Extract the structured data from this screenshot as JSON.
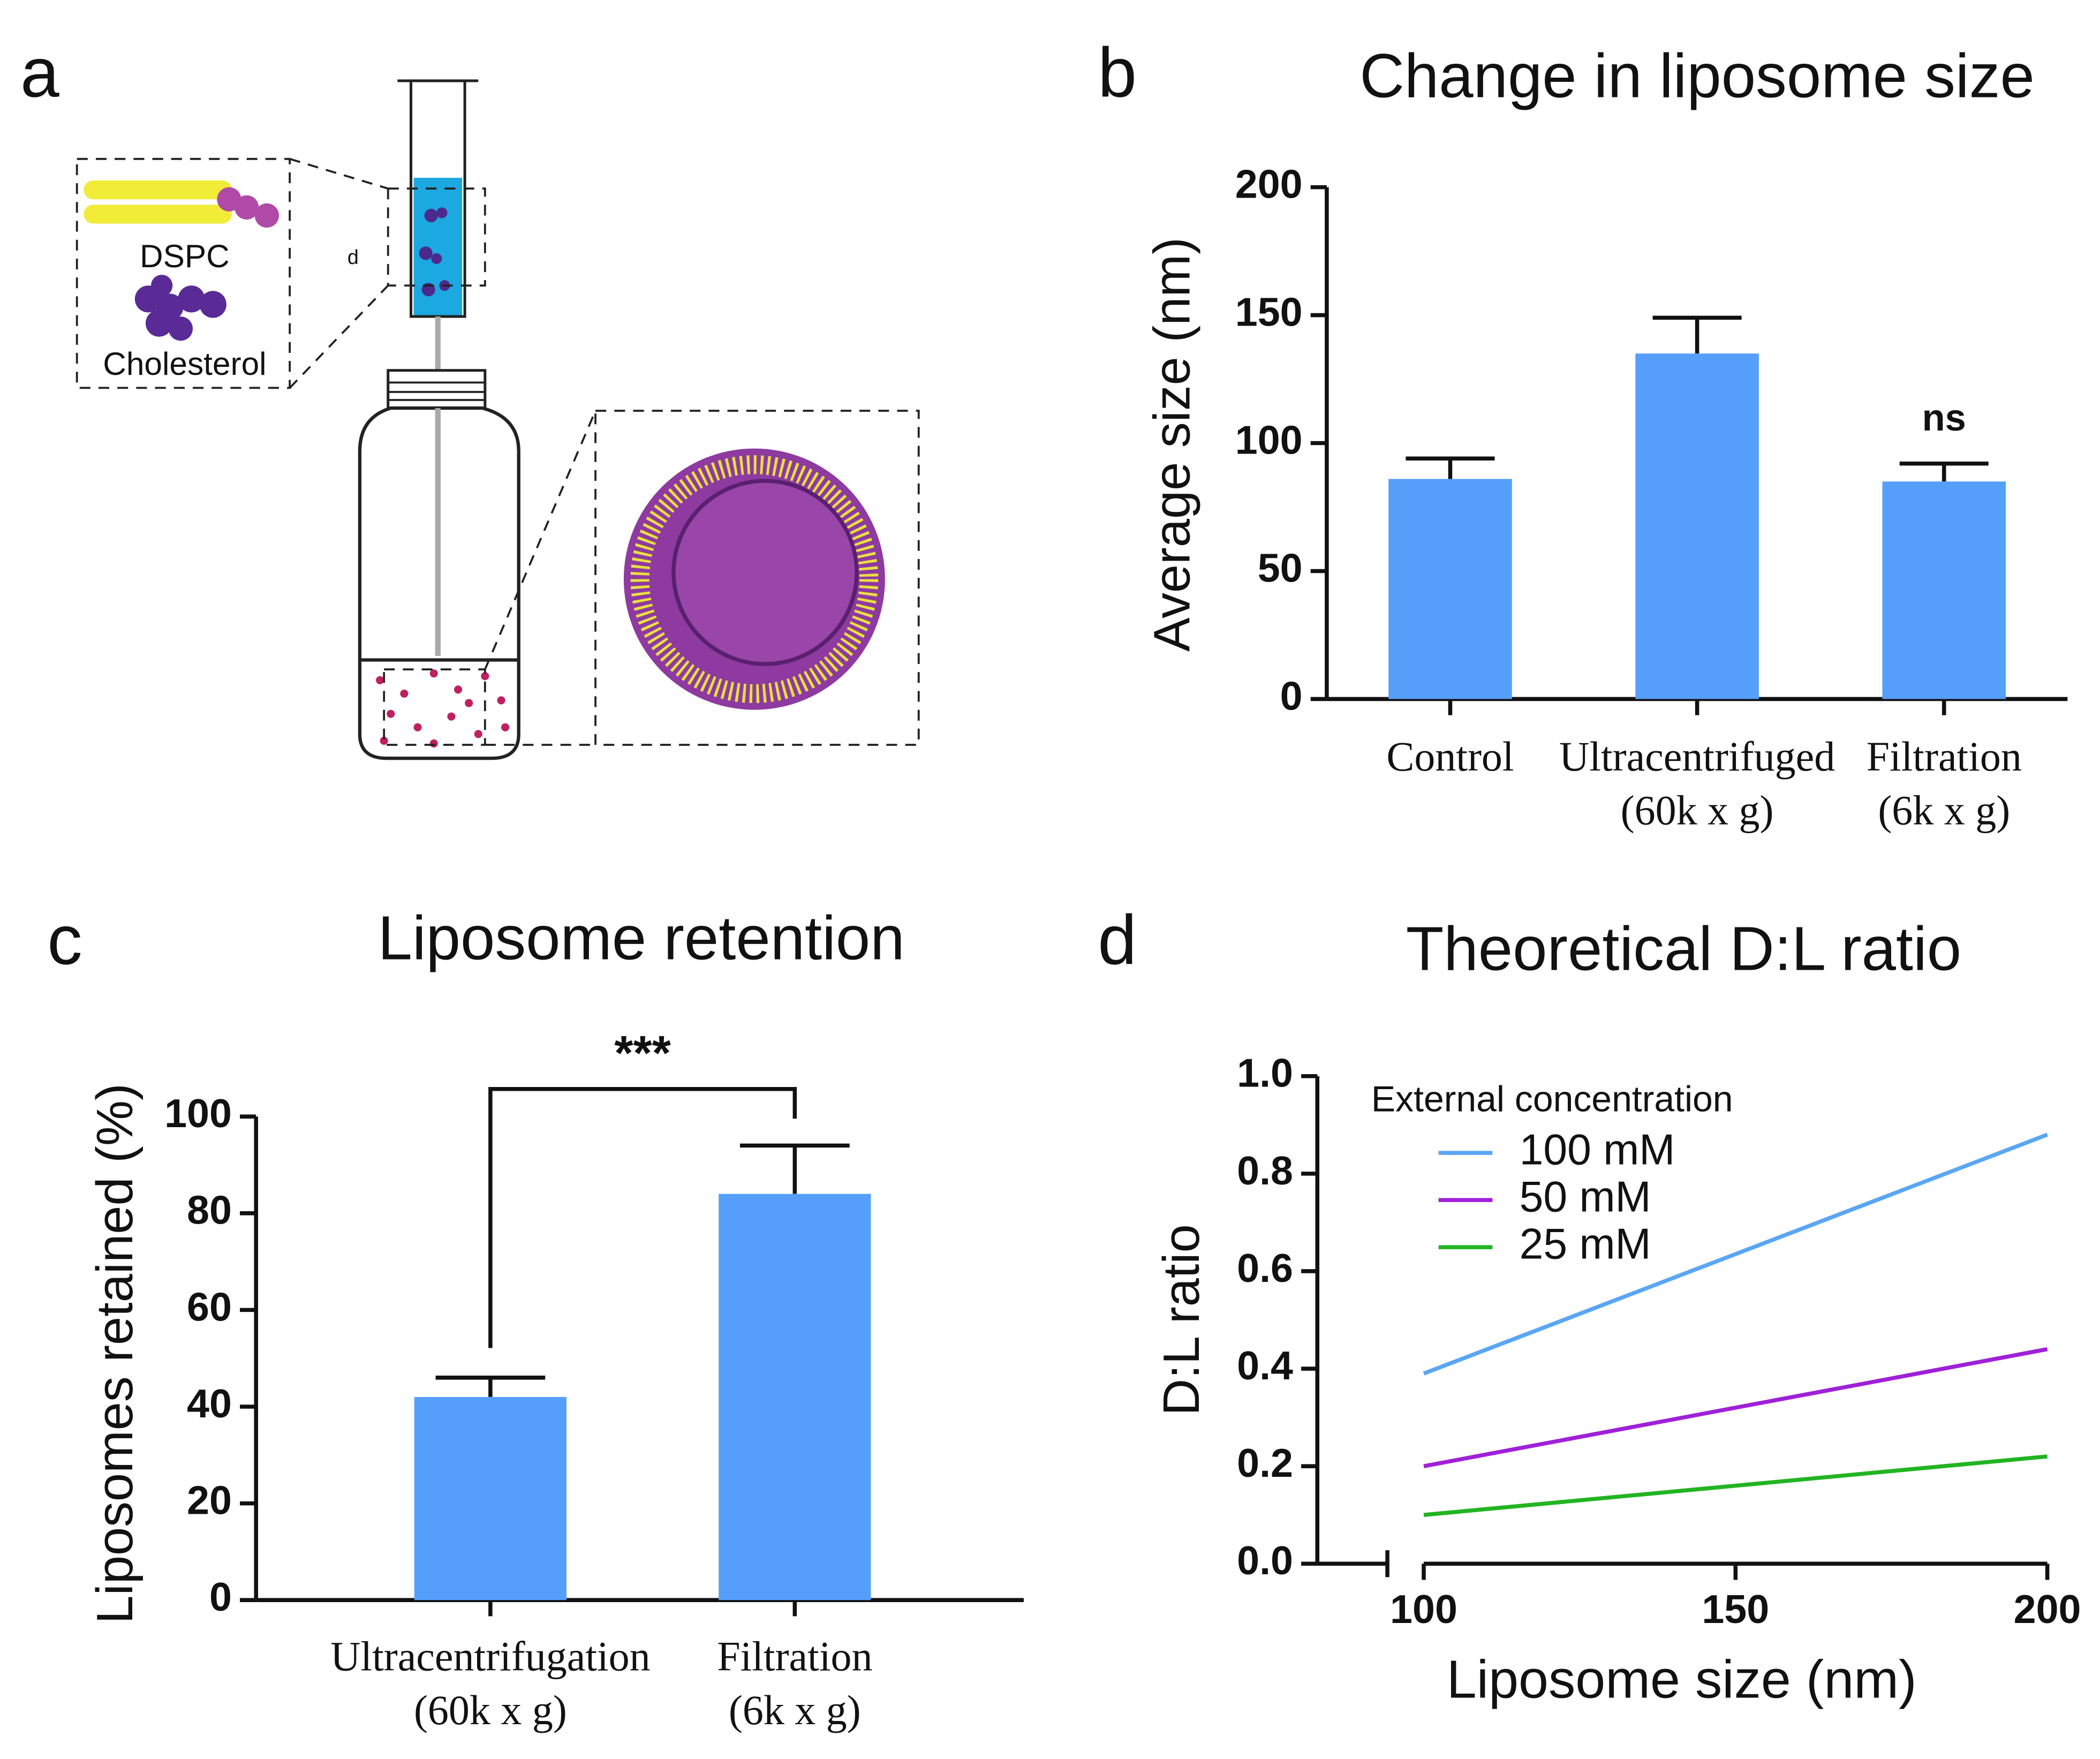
{
  "panel_labels": [
    "a",
    "b",
    "c",
    "d"
  ],
  "diagram": {
    "labels": [
      "DSPC",
      "Cholesterol",
      "d"
    ]
  },
  "chart_data": [
    {
      "type": "bar",
      "title": "Change in liposome size",
      "ylabel": "Average size (nm)",
      "categories": [
        [
          "Control"
        ],
        [
          "Ultracentrifuged",
          "(60k x g)"
        ],
        [
          "Filtration",
          "(6k x g)"
        ]
      ],
      "values": [
        86,
        135,
        85
      ],
      "errors": [
        8,
        14,
        7
      ],
      "color": "#559ffb",
      "ylim": [
        0,
        200
      ],
      "yticks": [
        0,
        50,
        100,
        150,
        200
      ],
      "annotations": [
        {
          "text": "ns",
          "category": "Filtration"
        }
      ]
    },
    {
      "type": "bar",
      "title": "Liposome retention",
      "ylabel": "Liposomes retained (%)",
      "categories": [
        [
          "Ultracentrifugation",
          "(60k x g)"
        ],
        [
          "Filtration",
          "(6k x g)"
        ]
      ],
      "values": [
        42,
        84
      ],
      "errors": [
        4,
        10
      ],
      "color": "#559ffb",
      "ylim": [
        0,
        100
      ],
      "yticks": [
        0,
        20,
        40,
        60,
        80,
        100
      ],
      "significance": "***"
    },
    {
      "type": "line",
      "title": "Theoretical D:L ratio",
      "xlabel": "Liposome size (nm)",
      "ylabel": "D:L ratio",
      "x": [
        100,
        200
      ],
      "xlim": [
        100,
        200
      ],
      "xticks": [
        100,
        150,
        200
      ],
      "ylim": [
        0,
        1
      ],
      "yticks": [
        {
          "value": 0,
          "label": "0.0"
        },
        0.2,
        0.4,
        0.6,
        0.8,
        {
          "value": 1,
          "label": "1.0"
        }
      ],
      "legend_title": "External concentration",
      "series": [
        {
          "name": "100 mM",
          "color": "#5aa6f4",
          "values": [
            0.39,
            0.88
          ]
        },
        {
          "name": "50 mM",
          "color": "#a020d8",
          "values": [
            0.2,
            0.44
          ]
        },
        {
          "name": "25 mM",
          "color": "#22b422",
          "values": [
            0.1,
            0.22
          ]
        }
      ]
    }
  ]
}
